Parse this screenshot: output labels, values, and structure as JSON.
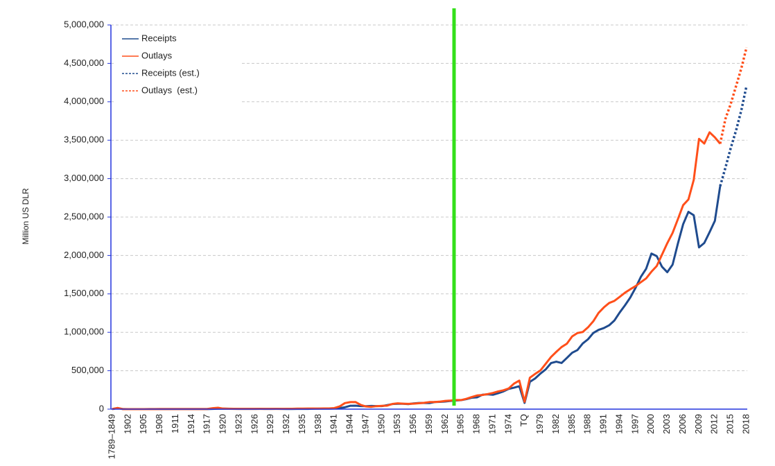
{
  "chart_data": {
    "type": "line",
    "ylabel": "Million US DLR",
    "categories": [
      "1789–1849",
      null,
      null,
      "1902",
      null,
      null,
      "1905",
      null,
      null,
      "1908",
      null,
      null,
      "1911",
      null,
      null,
      "1914",
      null,
      null,
      "1917",
      null,
      null,
      "1920",
      null,
      null,
      "1923",
      null,
      null,
      "1926",
      null,
      null,
      "1929",
      null,
      null,
      "1932",
      null,
      null,
      "1935",
      null,
      null,
      "1938",
      null,
      null,
      "1941",
      null,
      null,
      "1944",
      null,
      null,
      "1947",
      null,
      null,
      "1950",
      null,
      null,
      "1953",
      null,
      null,
      "1956",
      null,
      null,
      "1959",
      null,
      null,
      "1962",
      null,
      null,
      "1965",
      null,
      null,
      "1968",
      null,
      null,
      "1971",
      null,
      null,
      "1974",
      null,
      null,
      "TQ",
      null,
      null,
      "1979",
      null,
      null,
      "1982",
      null,
      null,
      "1985",
      null,
      null,
      "1988",
      null,
      null,
      "1991",
      null,
      null,
      "1994",
      null,
      null,
      "1997",
      null,
      null,
      "2000",
      null,
      null,
      "2003",
      null,
      null,
      "2006",
      null,
      null,
      "2009",
      null,
      null,
      "2012",
      null,
      null,
      "2015",
      null,
      null,
      "2018"
    ],
    "series": [
      {
        "name": "Receipts",
        "color": "#1f4b8e",
        "dashed": false,
        "values": [
          1160,
          14462,
          588,
          562,
          562,
          541,
          544,
          595,
          666,
          602,
          604,
          676,
          702,
          693,
          714,
          725,
          683,
          761,
          1101,
          3645,
          5130,
          6649,
          5571,
          4026,
          3853,
          3871,
          3641,
          3795,
          4013,
          3900,
          3862,
          4058,
          3116,
          1924,
          1997,
          2955,
          3609,
          3923,
          5387,
          6751,
          6295,
          6548,
          8712,
          14634,
          24001,
          43747,
          45159,
          39296,
          38514,
          41560,
          39415,
          39443,
          51616,
          66167,
          69608,
          69701,
          65451,
          74587,
          79990,
          79636,
          79249,
          92492,
          94388,
          99676,
          106560,
          112613,
          116817,
          130835,
          148822,
          152973,
          186882,
          192807,
          187139,
          207309,
          230799,
          263224,
          279090,
          298060,
          81232,
          355559,
          399561,
          463302,
          517112,
          599272,
          617766,
          600562,
          666438,
          734037,
          769155,
          854287,
          909238,
          991105,
          1031958,
          1054988,
          1091208,
          1154335,
          1258566,
          1351790,
          1453053,
          1579232,
          1721728,
          1827452,
          2025191,
          1991082,
          1853136,
          1782314,
          1880114,
          2153611,
          2406869,
          2567985,
          2523991,
          2104989,
          2162706,
          2303466,
          2449988,
          2902000,
          null,
          null,
          null,
          null,
          null
        ]
      },
      {
        "name": "Outlays",
        "color": "#ff4f1a",
        "dashed": false,
        "values": [
          1090,
          15453,
          525,
          485,
          517,
          584,
          567,
          570,
          579,
          659,
          694,
          694,
          691,
          690,
          715,
          726,
          746,
          713,
          1954,
          12677,
          18493,
          6358,
          5062,
          3289,
          3140,
          2908,
          2924,
          2930,
          2857,
          2961,
          3127,
          3320,
          3577,
          4659,
          4598,
          6541,
          6412,
          8228,
          7580,
          6840,
          9141,
          9468,
          13653,
          35137,
          78555,
          91304,
          92712,
          55232,
          34496,
          29764,
          38835,
          42562,
          45514,
          67686,
          76101,
          70855,
          68444,
          70640,
          76578,
          82405,
          92098,
          92191,
          97723,
          106821,
          111316,
          118528,
          118228,
          134532,
          157464,
          178134,
          183640,
          195649,
          210172,
          230681,
          245707,
          269359,
          332332,
          371792,
          95975,
          409218,
          458746,
          504028,
          590941,
          678241,
          745743,
          808364,
          851805,
          946344,
          990382,
          1004017,
          1064416,
          1143744,
          1252993,
          1324226,
          1381529,
          1409386,
          1461753,
          1515742,
          1560484,
          1601116,
          1652458,
          1701842,
          1788950,
          1862846,
          2010894,
          2159899,
          2292841,
          2471957,
          2655050,
          2728686,
          2982544,
          3517677,
          3456213,
          3603061,
          3537127,
          3454605,
          null,
          null,
          null,
          null,
          null
        ]
      },
      {
        "name": "Receipts (est.)",
        "color": "#1f4b8e",
        "dashed": true,
        "values": [
          null,
          null,
          null,
          null,
          null,
          null,
          null,
          null,
          null,
          null,
          null,
          null,
          null,
          null,
          null,
          null,
          null,
          null,
          null,
          null,
          null,
          null,
          null,
          null,
          null,
          null,
          null,
          null,
          null,
          null,
          null,
          null,
          null,
          null,
          null,
          null,
          null,
          null,
          null,
          null,
          null,
          null,
          null,
          null,
          null,
          null,
          null,
          null,
          null,
          null,
          null,
          null,
          null,
          null,
          null,
          null,
          null,
          null,
          null,
          null,
          null,
          null,
          null,
          null,
          null,
          null,
          null,
          null,
          null,
          null,
          null,
          null,
          null,
          null,
          null,
          null,
          null,
          null,
          null,
          null,
          null,
          null,
          null,
          null,
          null,
          null,
          null,
          null,
          null,
          null,
          null,
          null,
          null,
          null,
          null,
          null,
          null,
          null,
          null,
          null,
          null,
          null,
          null,
          null,
          null,
          null,
          null,
          null,
          null,
          null,
          null,
          null,
          null,
          null,
          null,
          2902000,
          3143000,
          3397000,
          3625000,
          3887000,
          4209000
        ]
      },
      {
        "name": "Outlays  (est.)",
        "color": "#ff4f1a",
        "dashed": true,
        "values": [
          null,
          null,
          null,
          null,
          null,
          null,
          null,
          null,
          null,
          null,
          null,
          null,
          null,
          null,
          null,
          null,
          null,
          null,
          null,
          null,
          null,
          null,
          null,
          null,
          null,
          null,
          null,
          null,
          null,
          null,
          null,
          null,
          null,
          null,
          null,
          null,
          null,
          null,
          null,
          null,
          null,
          null,
          null,
          null,
          null,
          null,
          null,
          null,
          null,
          null,
          null,
          null,
          null,
          null,
          null,
          null,
          null,
          null,
          null,
          null,
          null,
          null,
          null,
          null,
          null,
          null,
          null,
          null,
          null,
          null,
          null,
          null,
          null,
          null,
          null,
          null,
          null,
          null,
          null,
          null,
          null,
          null,
          null,
          null,
          null,
          null,
          null,
          null,
          null,
          null,
          null,
          null,
          null,
          null,
          null,
          null,
          null,
          null,
          null,
          null,
          null,
          null,
          null,
          null,
          null,
          null,
          null,
          null,
          null,
          null,
          null,
          null,
          null,
          null,
          null,
          3454605,
          3778000,
          3973000,
          4202000,
          4434000,
          4708000
        ]
      }
    ],
    "ylim": [
      0,
      5000000
    ],
    "yticks": [
      0,
      {
        "value": 500000,
        "label": "500,000"
      },
      {
        "value": 1000000,
        "label": "1,000,000"
      },
      {
        "value": 1500000,
        "label": "1,500,000"
      },
      {
        "value": 2000000,
        "label": "2,000,000"
      },
      {
        "value": 2500000,
        "label": "2,500,000"
      },
      {
        "value": 3000000,
        "label": "3,000,000"
      },
      {
        "value": 3500000,
        "label": "3,500,000"
      },
      {
        "value": 4000000,
        "label": "4,000,000"
      },
      {
        "value": 4500000,
        "label": "4,500,000"
      },
      {
        "value": 5000000,
        "label": "5,000,000"
      }
    ],
    "grid": true,
    "legend": "top-left"
  }
}
